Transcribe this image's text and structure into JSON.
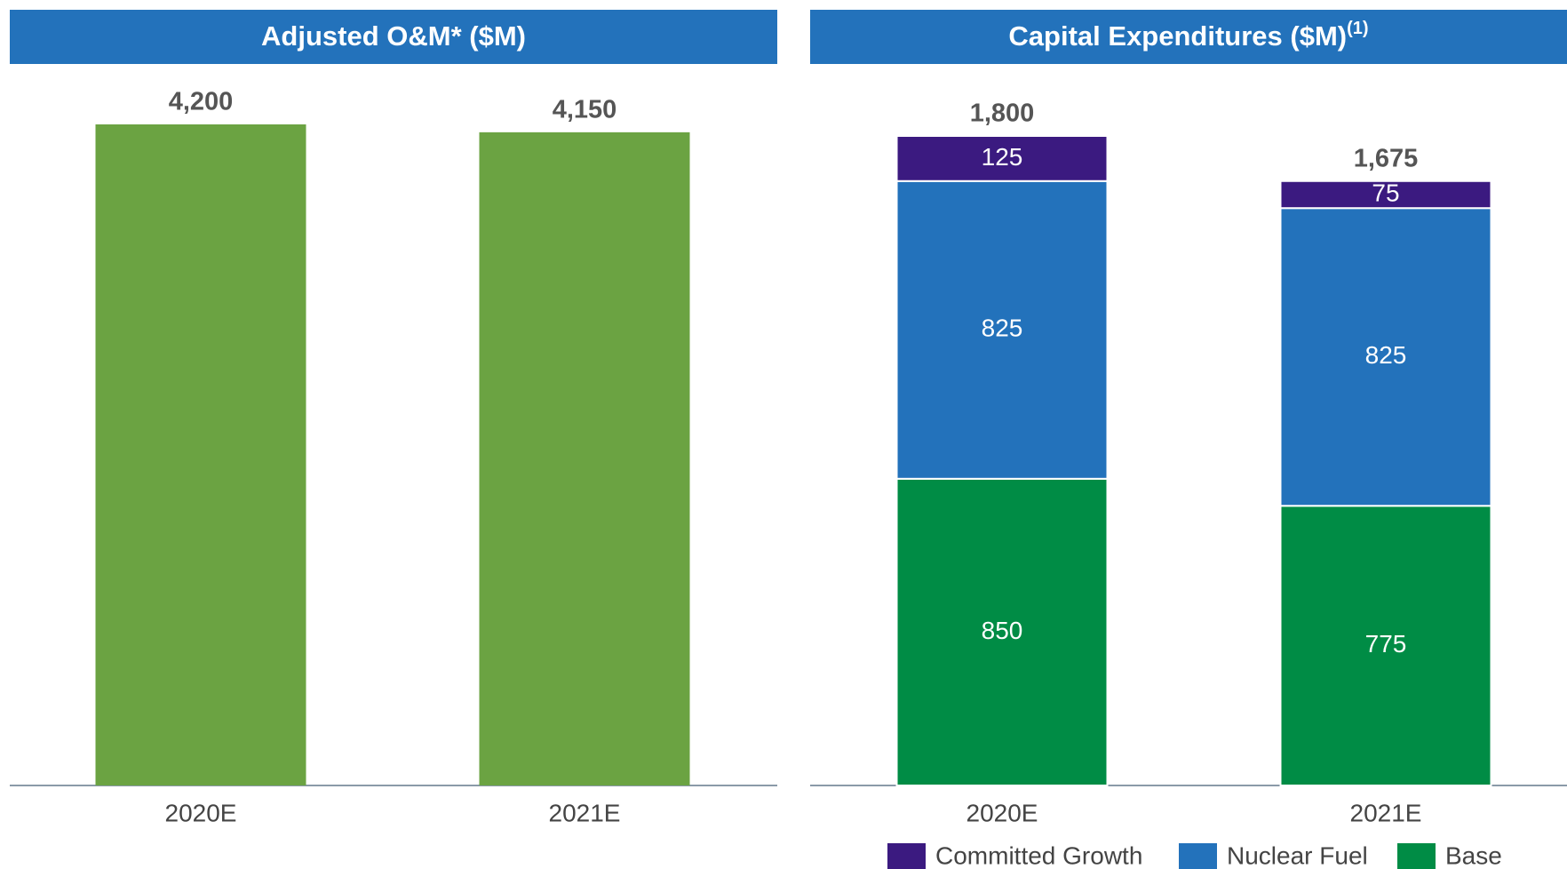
{
  "chart_data": [
    {
      "type": "bar",
      "title": "Adjusted O&M* ($M)",
      "categories": [
        "2020E",
        "2021E"
      ],
      "values": [
        4200,
        4150
      ],
      "value_labels": [
        "4,200",
        "4,150"
      ],
      "color": "#6ba342"
    },
    {
      "type": "stacked_bar",
      "title": "Capital Expenditures ($M)",
      "title_note": "(1)",
      "categories": [
        "2020E",
        "2021E"
      ],
      "series": [
        {
          "name": "Committed Growth",
          "color": "#3b1a80",
          "values": [
            125,
            75
          ]
        },
        {
          "name": "Nuclear Fuel",
          "color": "#2372bb",
          "values": [
            825,
            825
          ]
        },
        {
          "name": "Base",
          "color": "#008c45",
          "values": [
            850,
            775
          ]
        }
      ],
      "totals": [
        1800,
        1675
      ],
      "total_labels": [
        "1,800",
        "1,675"
      ]
    }
  ]
}
